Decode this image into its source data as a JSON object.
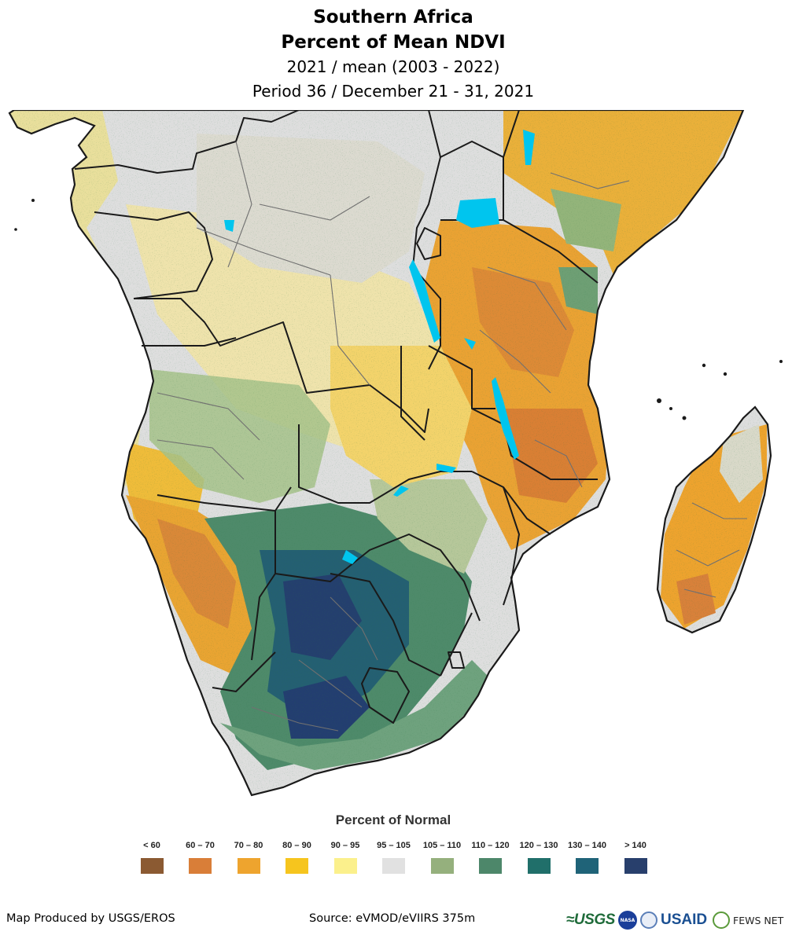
{
  "header": {
    "region": "Southern Africa",
    "product": "Percent of Mean NDVI",
    "comparison": "2021 / mean (2003 - 2022)",
    "period": "Period 36 / December 21 - 31, 2021"
  },
  "legend": {
    "title": "Percent of Normal",
    "classes": [
      {
        "label": "< 60",
        "color": "#8b5a32"
      },
      {
        "label": "60 – 70",
        "color": "#d97e38"
      },
      {
        "label": "70 – 80",
        "color": "#eea42e"
      },
      {
        "label": "80 – 90",
        "color": "#f6c51e"
      },
      {
        "label": "90 – 95",
        "color": "#fbf08c"
      },
      {
        "label": "95 – 105",
        "color": "#e1e1e1"
      },
      {
        "label": "105 – 110",
        "color": "#95b07d"
      },
      {
        "label": "110 – 120",
        "color": "#4d876a"
      },
      {
        "label": "120 – 130",
        "color": "#206f6a"
      },
      {
        "label": "130 – 140",
        "color": "#1f6378"
      },
      {
        "label": "> 140",
        "color": "#283f6c"
      }
    ]
  },
  "footer": {
    "producer": "Map Produced by USGS/EROS",
    "source": "Source: eVMOD/eVIIRS 375m"
  },
  "logos": {
    "usgs": "≈USGS",
    "nasa": "NASA",
    "usaid": "USAID",
    "fews": "FEWS NET"
  },
  "map_colors": {
    "water": "#00c5ee",
    "border": "#1a1a1a",
    "admin": "#707070"
  }
}
